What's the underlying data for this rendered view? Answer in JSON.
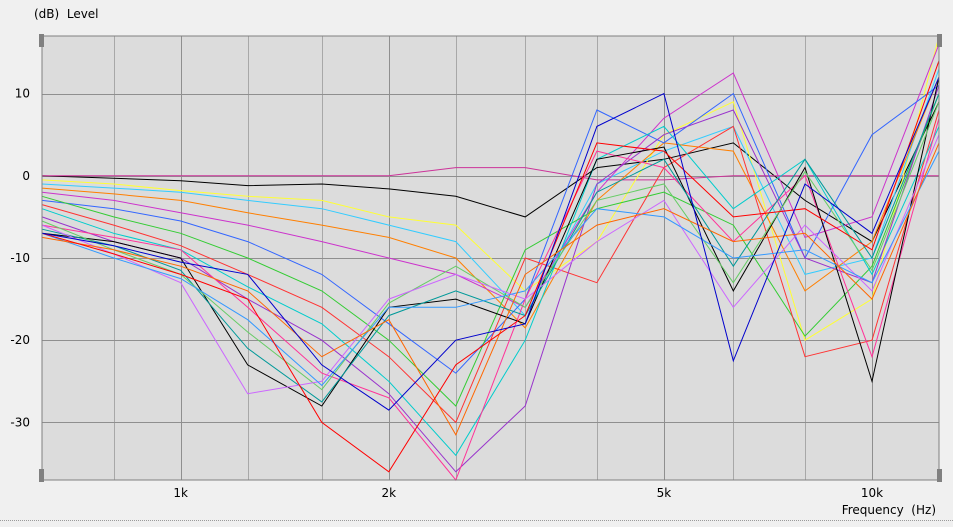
{
  "chart_data": {
    "type": "line",
    "ylabel": "(dB)  Level",
    "xlabel": "Frequency  (Hz)",
    "x_scale": "log",
    "xlim": [
      630,
      12500
    ],
    "ylim": [
      -37,
      17
    ],
    "x_ticks": [
      {
        "value": 1000,
        "label": "1k"
      },
      {
        "value": 2000,
        "label": "2k"
      },
      {
        "value": 5000,
        "label": "5k"
      },
      {
        "value": 10000,
        "label": "10k"
      }
    ],
    "y_ticks": [
      10,
      0,
      -10,
      -20,
      -30
    ],
    "grid": true,
    "legend": "none",
    "x": [
      630,
      800,
      1000,
      1250,
      1600,
      2000,
      2500,
      3150,
      4000,
      5000,
      6300,
      8000,
      10000,
      12500
    ],
    "series": [
      {
        "color": "#000000",
        "values": [
          0,
          -0.3,
          -0.6,
          -1.2,
          -1.0,
          -1.6,
          -2.5,
          -5.0,
          1.0,
          2.0,
          4.0,
          -3.0,
          -8.0,
          9.0
        ]
      },
      {
        "color": "#cc3399",
        "values": [
          0,
          0,
          0,
          0,
          0,
          0,
          1.0,
          1.0,
          -0.5,
          -0.5,
          0,
          0,
          0,
          0
        ]
      },
      {
        "color": "#ffff33",
        "values": [
          -0.5,
          -1.0,
          -1.8,
          -2.5,
          -3.0,
          -5.0,
          -6.0,
          -14.0,
          -8.0,
          5.0,
          9.0,
          -20.0,
          -15.0,
          17.0
        ]
      },
      {
        "color": "#33ccff",
        "values": [
          -1.0,
          -1.5,
          -2.0,
          -3.0,
          -4.0,
          -6.0,
          -8.0,
          -17.0,
          -1.0,
          3.0,
          6.0,
          -12.0,
          -10.0,
          13.0
        ]
      },
      {
        "color": "#ff7f00",
        "values": [
          -1.5,
          -2.2,
          -3.0,
          -4.5,
          -6.0,
          -7.5,
          -10.0,
          -18.5,
          -3.0,
          4.0,
          3.0,
          -14.0,
          -8.0,
          12.0
        ]
      },
      {
        "color": "#cc33cc",
        "values": [
          -2.0,
          -3.0,
          -4.5,
          -6.0,
          -8.0,
          -10.0,
          -12.0,
          -16.0,
          -2.0,
          7.0,
          12.5,
          -7.5,
          -5.0,
          16.0
        ]
      },
      {
        "color": "#3366ff",
        "values": [
          -3.0,
          -4.0,
          -5.5,
          -8.0,
          -12.0,
          -18.0,
          -24.0,
          -15.0,
          8.0,
          4.0,
          10.0,
          -10.0,
          5.0,
          11.0
        ]
      },
      {
        "color": "#33cc33",
        "values": [
          -2.5,
          -5.0,
          -7.0,
          -10.0,
          -14.0,
          -20.0,
          -28.0,
          -9.0,
          -4.0,
          -2.0,
          -6.0,
          -19.5,
          -11.0,
          10.0
        ]
      },
      {
        "color": "#ff3333",
        "values": [
          -3.5,
          -6.0,
          -8.5,
          -12.0,
          -16.0,
          -22.0,
          -30.0,
          -10.0,
          -13.0,
          1.0,
          6.0,
          -22.0,
          -20.0,
          8.0
        ]
      },
      {
        "color": "#00cccc",
        "values": [
          -4.0,
          -7.0,
          -9.0,
          -13.5,
          -18.0,
          -25.0,
          -34.0,
          -20.0,
          2.0,
          6.0,
          -4.0,
          2.0,
          -12.0,
          6.0
        ]
      },
      {
        "color": "#9933cc",
        "values": [
          -5.0,
          -8.0,
          -10.0,
          -15.0,
          -20.0,
          -26.5,
          -36.0,
          -28.0,
          -1.0,
          5.0,
          8.0,
          -10.0,
          -13.0,
          11.0
        ]
      },
      {
        "color": "#ff3399",
        "values": [
          -6.0,
          -7.5,
          -9.0,
          -16.0,
          -24.0,
          -27.0,
          -37.0,
          -15.0,
          3.0,
          1.0,
          -8.0,
          0.0,
          -22.0,
          7.0
        ]
      },
      {
        "color": "#000000",
        "values": [
          -7.0,
          -8.0,
          -10.0,
          -23.0,
          -28.0,
          -16.0,
          -15.0,
          -18.0,
          2.0,
          3.5,
          -14.0,
          1.0,
          -25.0,
          12.0
        ]
      },
      {
        "color": "#009999",
        "values": [
          -6.5,
          -8.5,
          -11.5,
          -21.0,
          -27.5,
          -17.0,
          -14.0,
          -17.0,
          -2.0,
          2.0,
          -11.0,
          2.0,
          -10.0,
          10.0
        ]
      },
      {
        "color": "#66cc66",
        "values": [
          -5.5,
          -9.0,
          -12.0,
          -19.0,
          -26.0,
          -15.5,
          -11.0,
          -16.0,
          -3.0,
          -1.0,
          -13.0,
          0.5,
          -11.5,
          9.0
        ]
      },
      {
        "color": "#cc66ff",
        "values": [
          -6.0,
          -9.5,
          -13.0,
          -26.5,
          -25.0,
          -15.0,
          -12.0,
          -15.0,
          -8.0,
          -3.0,
          -16.0,
          -6.0,
          -14.0,
          5.0
        ]
      },
      {
        "color": "#3399ff",
        "values": [
          -7.0,
          -10.0,
          -12.5,
          -17.5,
          -25.5,
          -16.0,
          -16.0,
          -14.0,
          -4.0,
          -5.0,
          -10.0,
          -9.0,
          -13.0,
          3.0
        ]
      },
      {
        "color": "#ff6600",
        "values": [
          -7.5,
          -9.0,
          -11.0,
          -14.0,
          -22.0,
          -17.5,
          -31.5,
          -12.0,
          -6.0,
          -4.0,
          -8.0,
          -7.0,
          -15.0,
          4.0
        ]
      },
      {
        "color": "#ff0000",
        "values": [
          -7.0,
          -9.5,
          -12.0,
          -15.0,
          -30.0,
          -36.0,
          -23.0,
          -17.0,
          4.0,
          3.0,
          -5.0,
          -4.0,
          -9.0,
          14.0
        ]
      },
      {
        "color": "#0000cc",
        "values": [
          -7.0,
          -8.5,
          -10.5,
          -12.0,
          -23.0,
          -28.5,
          -20.0,
          -18.0,
          6.0,
          10.0,
          -22.5,
          -1.0,
          -7.0,
          12.0
        ]
      }
    ]
  }
}
